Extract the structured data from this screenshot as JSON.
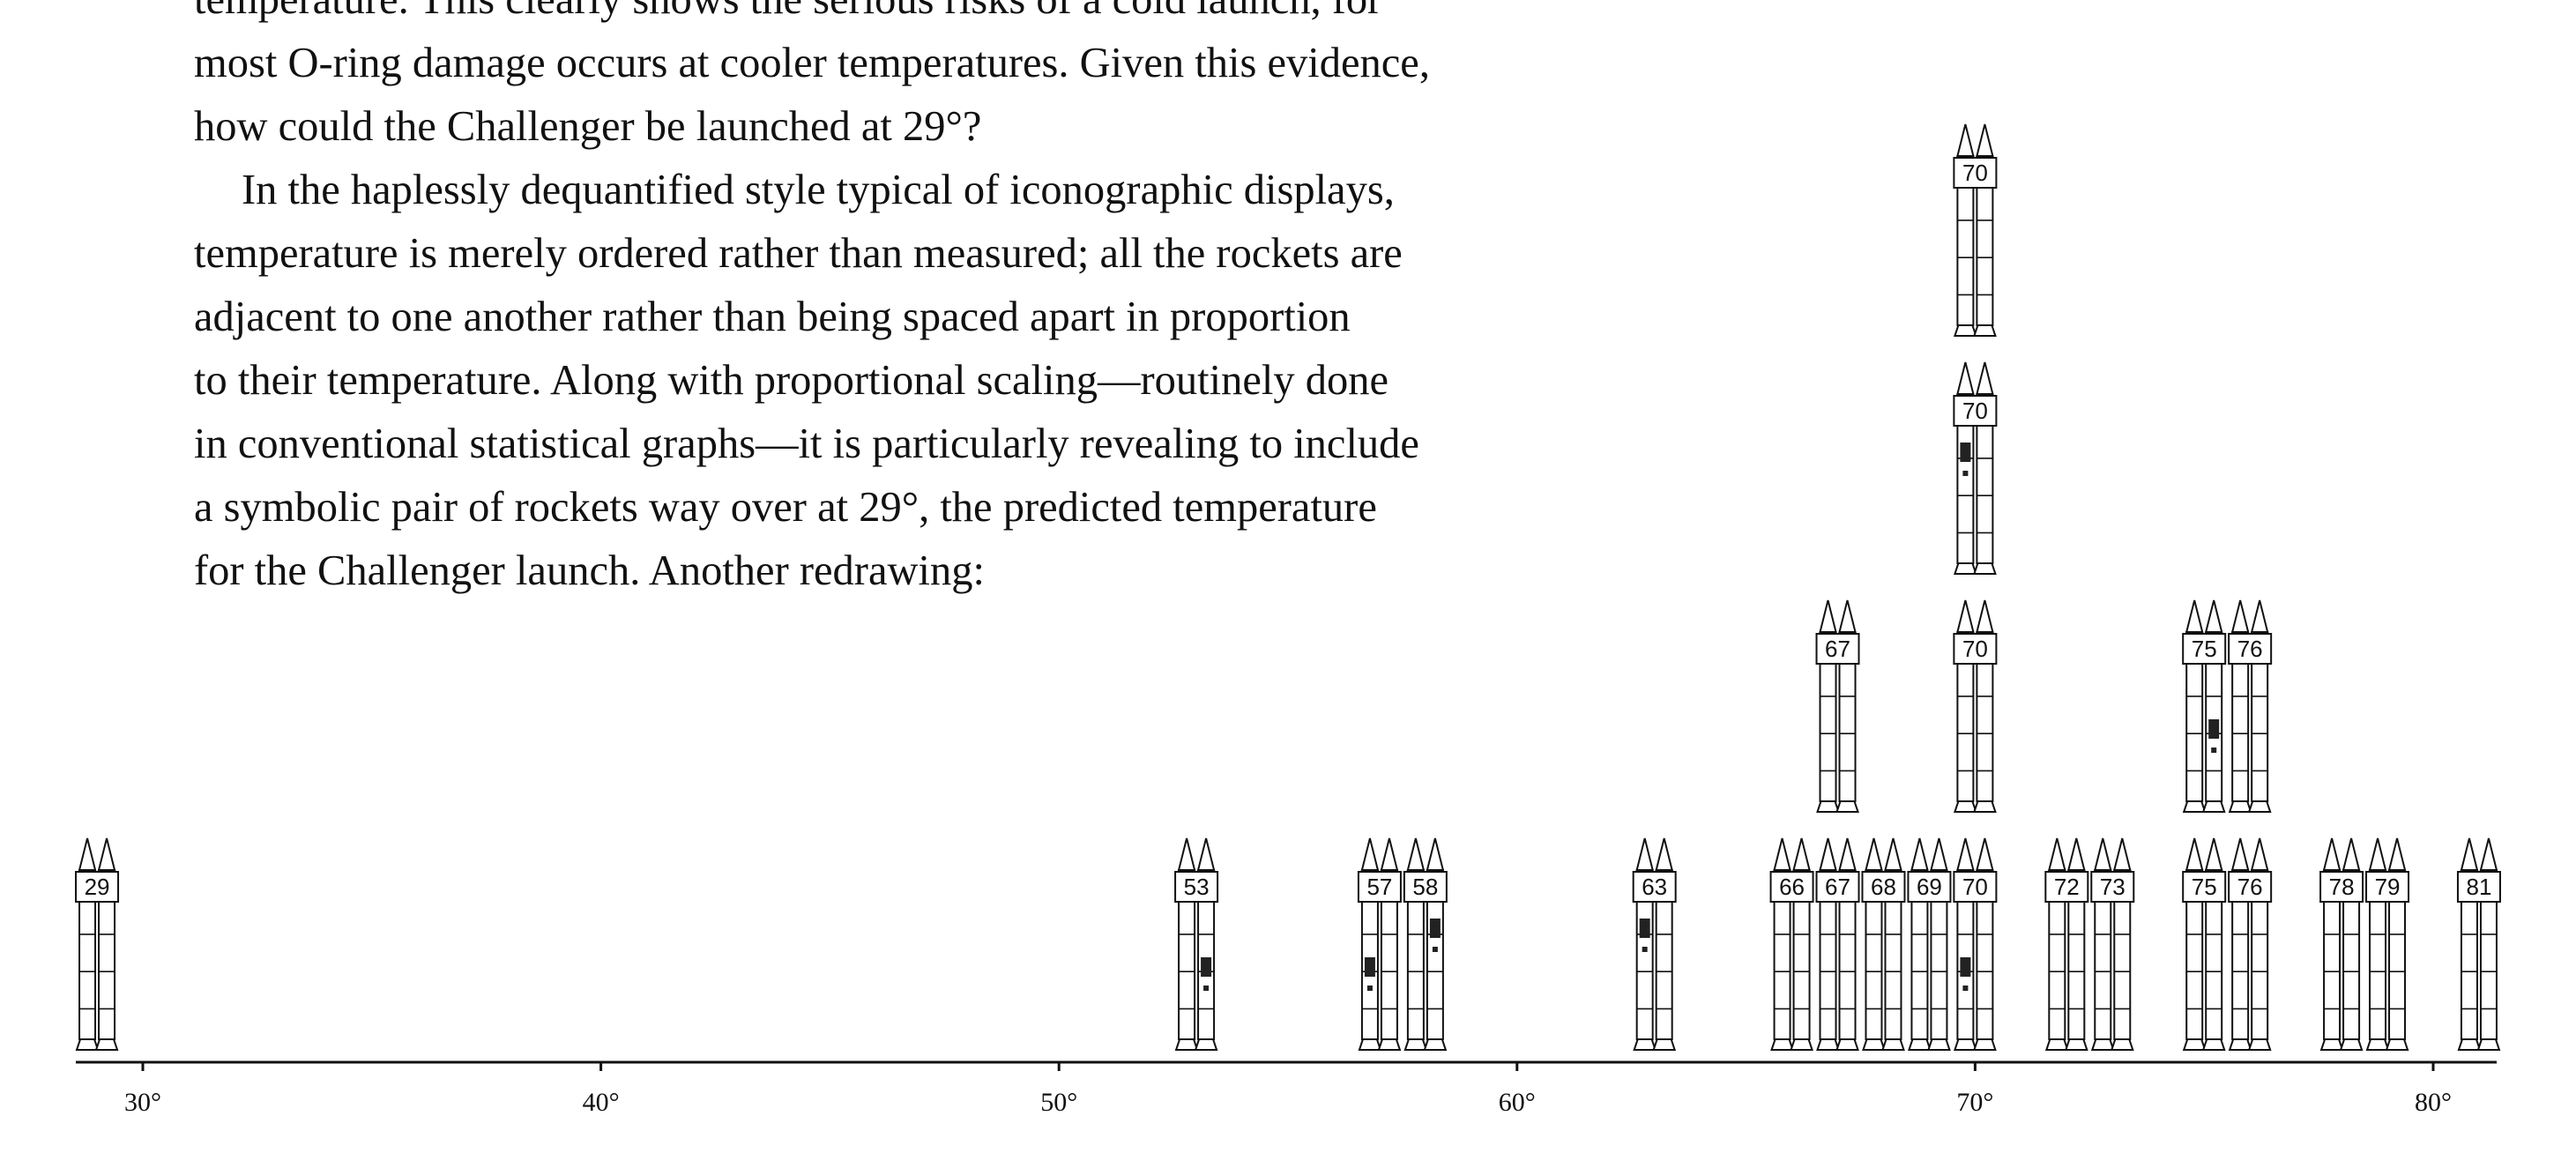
{
  "text": {
    "lines": [
      "temperature. This clearly shows the serious risks of a cold launch, for",
      "most O-ring damage occurs at cooler temperatures. Given this evidence,",
      "how could the Challenger be launched at 29°?",
      "In the haplessly dequantified style typical of iconographic displays,",
      "temperature is merely ordered rather than measured; all the rockets are",
      "adjacent to one another rather than being spaced apart in proportion",
      "to their temperature. Along with proportional scaling—routinely done",
      "in conventional statistical graphs—it is particularly revealing to include",
      "a symbolic pair of rockets way over at 29°, the predicted temperature",
      "for the Challenger launch. Another redrawing:"
    ]
  },
  "chart_data": {
    "type": "scatter",
    "title": "",
    "xlabel": "",
    "ylabel": "",
    "xlim": [
      28,
      81.5
    ],
    "x_ticks": [
      30,
      40,
      50,
      60,
      70,
      80
    ],
    "x_tick_labels": [
      "30°",
      "40°",
      "50°",
      "60°",
      "70°",
      "80°"
    ],
    "mark": "pair of booster rockets labeled with launch temperature",
    "launches": [
      {
        "temp": 29,
        "stack": 0,
        "label": "29",
        "damage": false
      },
      {
        "temp": 53,
        "stack": 0,
        "label": "53",
        "damage": true
      },
      {
        "temp": 57,
        "stack": 0,
        "label": "57",
        "damage": true
      },
      {
        "temp": 58,
        "stack": 0,
        "label": "58",
        "damage": true
      },
      {
        "temp": 63,
        "stack": 0,
        "label": "63",
        "damage": true
      },
      {
        "temp": 66,
        "stack": 0,
        "label": "66",
        "damage": false
      },
      {
        "temp": 67,
        "stack": 0,
        "label": "67",
        "damage": false
      },
      {
        "temp": 67,
        "stack": 1,
        "label": "67",
        "damage": false
      },
      {
        "temp": 68,
        "stack": 0,
        "label": "68",
        "damage": false
      },
      {
        "temp": 69,
        "stack": 0,
        "label": "69",
        "damage": false
      },
      {
        "temp": 70,
        "stack": 0,
        "label": "70",
        "damage": true
      },
      {
        "temp": 70,
        "stack": 1,
        "label": "70",
        "damage": false
      },
      {
        "temp": 70,
        "stack": 2,
        "label": "70",
        "damage": true
      },
      {
        "temp": 70,
        "stack": 3,
        "label": "70",
        "damage": false
      },
      {
        "temp": 72,
        "stack": 0,
        "label": "72",
        "damage": false
      },
      {
        "temp": 73,
        "stack": 0,
        "label": "73",
        "damage": false
      },
      {
        "temp": 75,
        "stack": 0,
        "label": "75",
        "damage": false
      },
      {
        "temp": 75,
        "stack": 1,
        "label": "75",
        "damage": true
      },
      {
        "temp": 76,
        "stack": 0,
        "label": "76",
        "damage": false
      },
      {
        "temp": 76,
        "stack": 1,
        "label": "76",
        "damage": false
      },
      {
        "temp": 78,
        "stack": 0,
        "label": "78",
        "damage": false
      },
      {
        "temp": 79,
        "stack": 0,
        "label": "79",
        "damage": false
      },
      {
        "temp": 81,
        "stack": 0,
        "label": "81",
        "damage": false
      }
    ]
  }
}
